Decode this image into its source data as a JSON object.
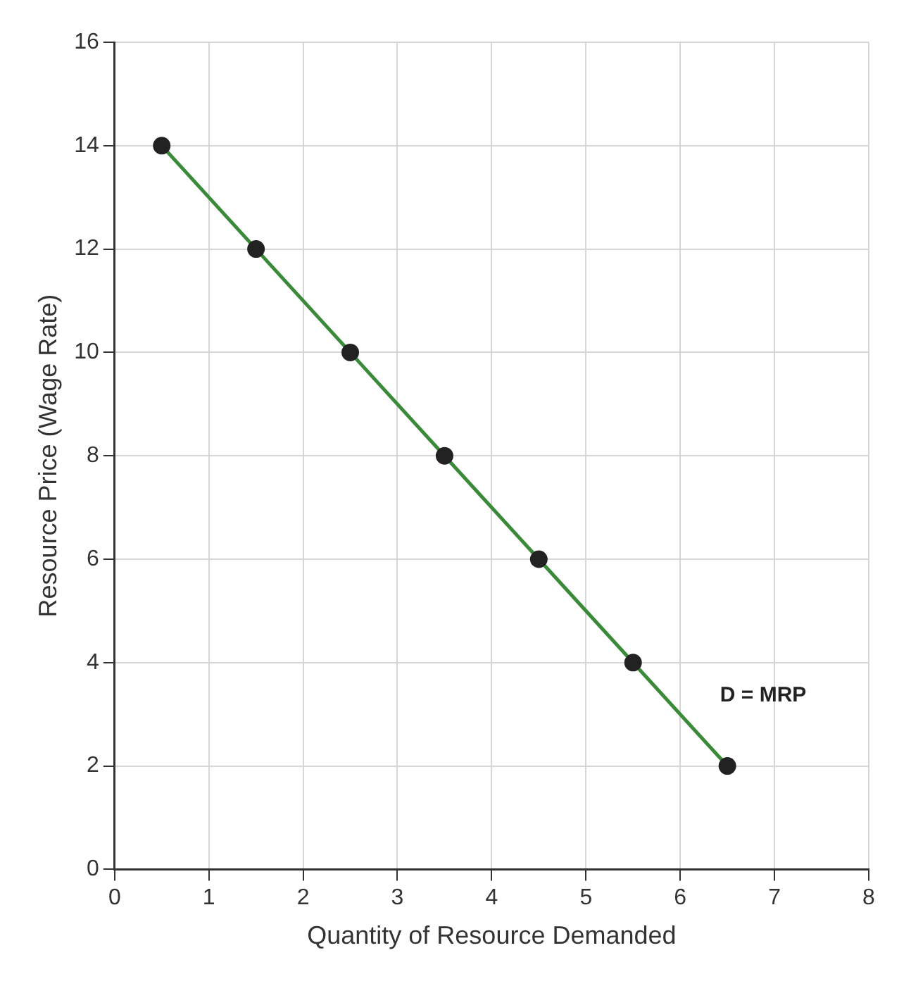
{
  "chart_data": {
    "type": "line",
    "xlabel": "Quantity of Resource Demanded",
    "ylabel": "Resource Price (Wage Rate)",
    "x": [
      0.5,
      1.5,
      2.5,
      3.5,
      4.5,
      5.5,
      6.5
    ],
    "series": [
      {
        "color": "#3a8a3a",
        "values": [
          14,
          12,
          10,
          8,
          6,
          4,
          2
        ]
      }
    ],
    "xlim": [
      0,
      8
    ],
    "xticks": [
      0,
      1,
      2,
      3,
      4,
      5,
      6,
      7,
      8
    ],
    "ylim": [
      0,
      16
    ],
    "yticks": [
      0,
      2,
      4,
      6,
      8,
      10,
      12,
      14,
      16
    ],
    "grid": true,
    "legend": false,
    "marker": "circle",
    "line_style": "solid",
    "annotations": [
      "D = MRP"
    ]
  }
}
